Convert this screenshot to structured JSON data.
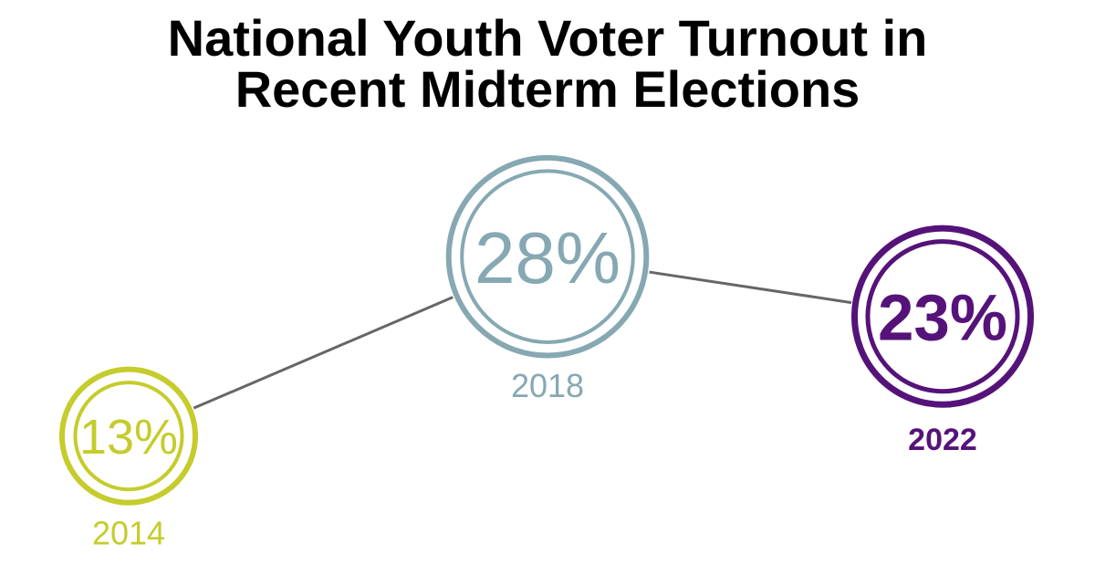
{
  "title_lines": [
    "National Youth Voter Turnout in",
    "Recent Midterm Elections"
  ],
  "chart_data": {
    "type": "line",
    "title": "National Youth Voter Turnout in Recent Midterm Elections",
    "categories": [
      "2014",
      "2018",
      "2022"
    ],
    "values": [
      13,
      28,
      23
    ],
    "value_labels": [
      "13%",
      "28%",
      "23%"
    ],
    "unit": "%",
    "grid": false,
    "legend": "none",
    "colors": [
      "#c5cc2c",
      "#86a8b2",
      "#55137a"
    ],
    "connector_color": "#666666"
  }
}
